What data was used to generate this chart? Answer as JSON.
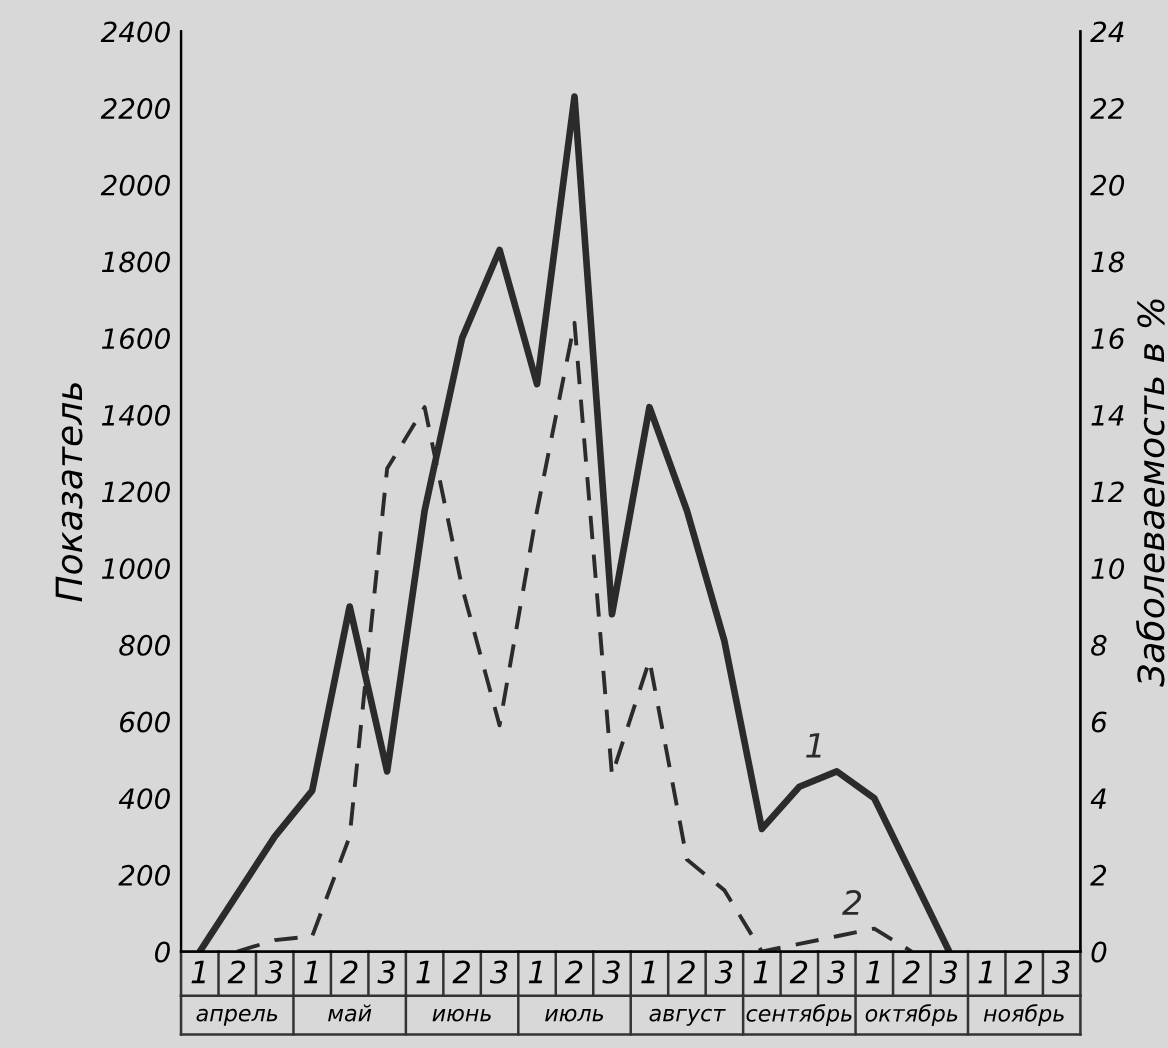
{
  "chart_data": {
    "type": "line",
    "ylabel": "Показатель",
    "y2label": "Заболеваемость в %",
    "categories": [
      "1",
      "2",
      "3",
      "1",
      "2",
      "3",
      "1",
      "2",
      "3",
      "1",
      "2",
      "3",
      "1",
      "2",
      "3",
      "1",
      "2",
      "3",
      "1",
      "2",
      "3",
      "1",
      "2",
      "3"
    ],
    "annotations": [
      "апрель",
      "май",
      "июнь",
      "июль",
      "август",
      "сентябрь",
      "октябрь",
      "ноябрь"
    ],
    "series": [
      {
        "name": "1",
        "color": "#2b2b2b",
        "line_style": "solid",
        "values": [
          0,
          150,
          300,
          420,
          900,
          470,
          1150,
          1600,
          1830,
          1480,
          2230,
          880,
          1420,
          1150,
          810,
          320,
          430,
          470,
          400,
          200,
          0,
          null,
          null,
          null
        ]
      },
      {
        "name": "2",
        "color": "#2b2b2b",
        "line_style": "dashed",
        "axis": "y2",
        "values": [
          null,
          0,
          0.3,
          0.4,
          3,
          12.6,
          14.2,
          9.5,
          5.9,
          11.5,
          16.4,
          4.6,
          7.6,
          2.4,
          1.6,
          0,
          0.2,
          0.4,
          0.6,
          0,
          null,
          null,
          null,
          null
        ]
      }
    ],
    "ylim": [
      0,
      2400
    ],
    "yticks": [
      0,
      200,
      400,
      600,
      800,
      1000,
      1200,
      1400,
      1600,
      1800,
      2000,
      2200,
      2400
    ],
    "y2lim": [
      0,
      24
    ],
    "y2ticks": [
      0,
      2,
      4,
      6,
      8,
      10,
      12,
      14,
      16,
      18,
      20,
      22,
      24
    ],
    "grid": false,
    "legend": false
  }
}
